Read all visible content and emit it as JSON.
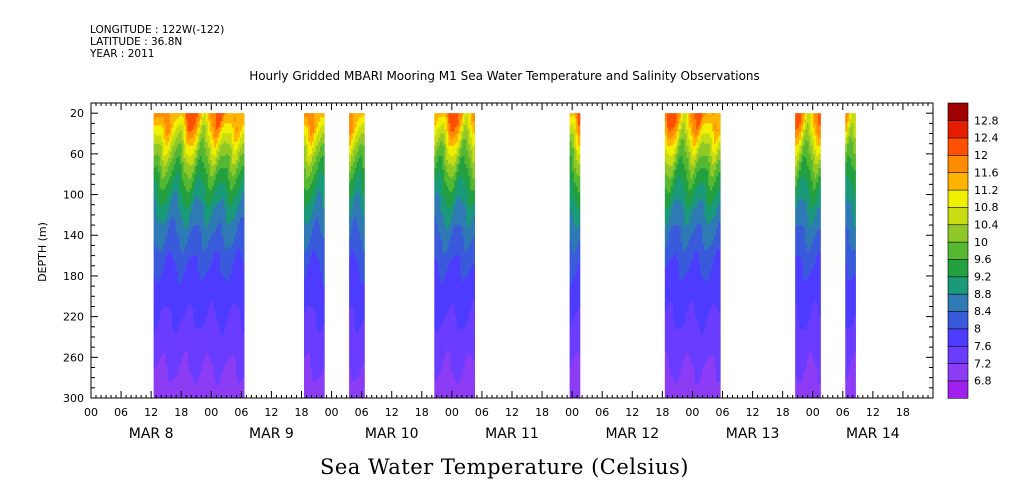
{
  "header": {
    "longitude": "LONGITUDE : 122W(-122)",
    "latitude": "LATITUDE : 36.8N",
    "year": "YEAR : 2011"
  },
  "chart_data": {
    "type": "heatmap",
    "title": "Hourly Gridded MBARI Mooring M1 Sea Water Temperature and Salinity Observations",
    "xlabel": "Sea Water Temperature (Celsius)",
    "ylabel": "DEPTH (m)",
    "x_unit": "hours since 2011-03-08 00:00",
    "xlim": [
      0,
      168
    ],
    "ylim": [
      300,
      10
    ],
    "y_ticks": [
      20,
      60,
      100,
      140,
      180,
      220,
      260,
      300
    ],
    "x_hour_labels": [
      "00",
      "06",
      "12",
      "18"
    ],
    "x_day_labels": [
      {
        "label": "MAR  8",
        "hour": 0
      },
      {
        "label": "MAR  9",
        "hour": 24
      },
      {
        "label": "MAR 10",
        "hour": 48
      },
      {
        "label": "MAR 11",
        "hour": 72
      },
      {
        "label": "MAR 12",
        "hour": 96
      },
      {
        "label": "MAR 13",
        "hour": 120
      },
      {
        "label": "MAR 14",
        "hour": 144
      }
    ],
    "colorbar": {
      "levels": [
        6.8,
        7.2,
        7.6,
        8,
        8.4,
        8.8,
        9.2,
        9.6,
        10,
        10.4,
        10.8,
        11.2,
        11.6,
        12,
        12.4,
        12.8
      ],
      "labels": [
        "12.8",
        "12.4",
        "12",
        "11.6",
        "11.2",
        "10.8",
        "10.4",
        "10",
        "9.6",
        "9.2",
        "8.8",
        "8.4",
        "8",
        "7.6",
        "7.2",
        "6.8"
      ],
      "colors": [
        "#a020f0",
        "#8c3cf5",
        "#6a3cff",
        "#4d3cff",
        "#3a5adc",
        "#2f7ab4",
        "#1a9a78",
        "#23a040",
        "#55b830",
        "#90c828",
        "#c8dc14",
        "#f0f000",
        "#ffb400",
        "#ff8c00",
        "#ff5000",
        "#e61e00",
        "#a00000"
      ]
    },
    "data_segments": [
      {
        "start_hour": 12.5,
        "end_hour": 30.5
      },
      {
        "start_hour": 42.5,
        "end_hour": 46.5
      },
      {
        "start_hour": 51.5,
        "end_hour": 54.5
      },
      {
        "start_hour": 68.5,
        "end_hour": 76.5
      },
      {
        "start_hour": 95.5,
        "end_hour": 97.5
      },
      {
        "start_hour": 114.5,
        "end_hour": 125.5
      },
      {
        "start_hour": 140.5,
        "end_hour": 145.5
      },
      {
        "start_hour": 150.5,
        "end_hour": 152.5
      }
    ],
    "temperature_profile": {
      "depth": [
        20,
        40,
        60,
        80,
        100,
        120,
        140,
        160,
        180,
        200,
        220,
        240,
        260,
        280,
        300
      ],
      "temp": [
        11.9,
        11.0,
        10.2,
        9.6,
        9.1,
        8.7,
        8.4,
        8.1,
        7.9,
        7.7,
        7.6,
        7.5,
        7.3,
        7.1,
        7.0
      ]
    }
  }
}
